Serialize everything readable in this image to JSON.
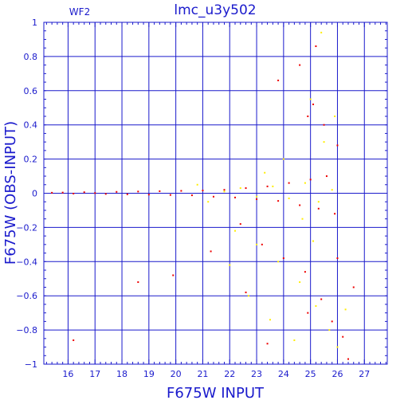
{
  "chart_data": {
    "type": "scatter",
    "title": "lmc_u3y502",
    "panel_label": "WF2",
    "xlabel": "F675W INPUT",
    "ylabel": "F675W (OBS-INPUT)",
    "xlim": [
      15.1,
      27.85
    ],
    "ylim": [
      -1,
      1
    ],
    "grid": true,
    "x_ticks": [
      16,
      17,
      18,
      19,
      20,
      21,
      22,
      23,
      24,
      25,
      26,
      27
    ],
    "x_tick_labels": [
      "16",
      "17",
      "18",
      "19",
      "20",
      "21",
      "22",
      "23",
      "24",
      "25",
      "26",
      "27"
    ],
    "y_ticks": [
      -1,
      -0.8,
      -0.6,
      -0.4,
      -0.2,
      0,
      0.2,
      0.4,
      0.6,
      0.8,
      1
    ],
    "y_tick_labels": [
      "−1",
      "−0.8",
      "−0.6",
      "−0.4",
      "−0.2",
      "0",
      "0.2",
      "0.4",
      "0.6",
      "0.8",
      "1"
    ],
    "colors": {
      "axis": "#1a1acc",
      "red": "#ee0000",
      "yellow": "#ffee00"
    },
    "series": [
      {
        "color": "red",
        "points": [
          [
            15.4,
            0.003
          ],
          [
            15.8,
            0.004
          ],
          [
            16.2,
            -0.002
          ],
          [
            16.6,
            0.006
          ],
          [
            17.0,
            0.001
          ],
          [
            17.4,
            -0.004
          ],
          [
            17.8,
            0.008
          ],
          [
            18.2,
            -0.006
          ],
          [
            18.6,
            0.01
          ],
          [
            19.0,
            -0.008
          ],
          [
            19.4,
            0.012
          ],
          [
            19.8,
            -0.01
          ],
          [
            20.2,
            0.014
          ],
          [
            20.6,
            -0.012
          ],
          [
            21.0,
            0.016
          ],
          [
            21.4,
            -0.02
          ],
          [
            21.8,
            0.02
          ],
          [
            22.2,
            -0.025
          ],
          [
            22.6,
            0.03
          ],
          [
            23.0,
            -0.035
          ],
          [
            23.4,
            0.04
          ],
          [
            23.8,
            -0.045
          ],
          [
            24.2,
            0.06
          ],
          [
            24.6,
            -0.07
          ],
          [
            25.0,
            0.08
          ],
          [
            25.3,
            -0.09
          ],
          [
            25.6,
            0.1
          ],
          [
            25.9,
            -0.12
          ],
          [
            24.9,
            0.45
          ],
          [
            25.1,
            0.52
          ],
          [
            25.5,
            0.4
          ],
          [
            23.8,
            0.66
          ],
          [
            24.6,
            0.75
          ],
          [
            25.2,
            0.86
          ],
          [
            26.0,
            0.28
          ],
          [
            22.4,
            -0.18
          ],
          [
            23.2,
            -0.3
          ],
          [
            24.0,
            -0.38
          ],
          [
            24.8,
            -0.46
          ],
          [
            25.4,
            -0.62
          ],
          [
            25.8,
            -0.75
          ],
          [
            26.2,
            -0.84
          ],
          [
            26.4,
            -0.97
          ],
          [
            19.9,
            -0.48
          ],
          [
            18.6,
            -0.52
          ],
          [
            16.2,
            -0.86
          ],
          [
            21.3,
            -0.34
          ],
          [
            22.6,
            -0.58
          ],
          [
            23.4,
            -0.88
          ],
          [
            24.9,
            -0.7
          ],
          [
            26.0,
            -0.38
          ],
          [
            26.6,
            -0.55
          ]
        ]
      },
      {
        "color": "yellow",
        "points": [
          [
            21.8,
            0.01
          ],
          [
            22.4,
            0.03
          ],
          [
            23.0,
            -0.02
          ],
          [
            23.6,
            0.04
          ],
          [
            24.2,
            -0.03
          ],
          [
            24.8,
            0.06
          ],
          [
            25.3,
            -0.05
          ],
          [
            25.8,
            0.02
          ],
          [
            22.2,
            -0.22
          ],
          [
            23.0,
            -0.3
          ],
          [
            23.8,
            -0.4
          ],
          [
            24.6,
            -0.52
          ],
          [
            25.2,
            -0.66
          ],
          [
            25.7,
            -0.8
          ],
          [
            26.0,
            -0.9
          ],
          [
            23.5,
            -0.74
          ],
          [
            24.4,
            -0.86
          ],
          [
            25.0,
            0.55
          ],
          [
            25.5,
            0.3
          ],
          [
            25.4,
            0.94
          ],
          [
            22.0,
            -0.42
          ],
          [
            24.0,
            0.2
          ],
          [
            25.9,
            0.45
          ],
          [
            22.7,
            -0.6
          ],
          [
            23.3,
            0.12
          ],
          [
            21.2,
            -0.05
          ],
          [
            20.8,
            0.05
          ],
          [
            25.1,
            -0.28
          ],
          [
            24.7,
            -0.15
          ],
          [
            26.3,
            -0.68
          ]
        ]
      }
    ]
  }
}
